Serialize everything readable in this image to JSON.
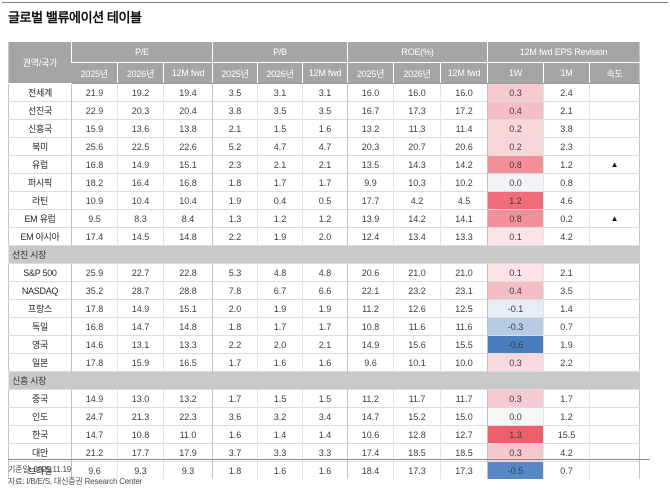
{
  "title": "글로벌 밸류에이션 테이블",
  "colors": {
    "header_bg": "#a5a5a5",
    "section_bg": "#c9c9c9",
    "positive_strong": "#ef5e6b",
    "negative_strong": "#4a7cc0"
  },
  "table": {
    "corner_label": "권역/국가",
    "groups": [
      {
        "label": "P/E",
        "cols": [
          "2025년",
          "2026년",
          "12M fwd"
        ]
      },
      {
        "label": "P/B",
        "cols": [
          "2025년",
          "2026년",
          "12M fwd"
        ]
      },
      {
        "label": "ROE(%)",
        "cols": [
          "2025년",
          "2026년",
          "12M fwd"
        ]
      },
      {
        "label": "12M fwd EPS Revision",
        "cols": [
          "1W",
          "1M",
          "속도"
        ]
      }
    ],
    "rows": [
      {
        "type": "data",
        "name": "전세계",
        "pe": [
          "21.9",
          "19.2",
          "19.4"
        ],
        "pb": [
          "3.5",
          "3.1",
          "3.1"
        ],
        "roe": [
          "16.0",
          "16.0",
          "16.0"
        ],
        "eps_1w": "0.3",
        "eps_1m": "2.4",
        "speed": "",
        "heat_1w": "#f6cad0"
      },
      {
        "type": "data",
        "name": "선진국",
        "pe": [
          "22.9",
          "20.3",
          "20.4"
        ],
        "pb": [
          "3.8",
          "3.5",
          "3.5"
        ],
        "roe": [
          "16.7",
          "17.3",
          "17.2"
        ],
        "eps_1w": "0.4",
        "eps_1m": "2.1",
        "speed": "",
        "heat_1w": "#f5bdc4"
      },
      {
        "type": "data",
        "name": "신흥국",
        "pe": [
          "15.9",
          "13.6",
          "13.8"
        ],
        "pb": [
          "2.1",
          "1.5",
          "1.6"
        ],
        "roe": [
          "13.2",
          "11.3",
          "11.4"
        ],
        "eps_1w": "0.2",
        "eps_1m": "3.8",
        "speed": "",
        "heat_1w": "#f8d6da"
      },
      {
        "type": "data",
        "name": "북미",
        "pe": [
          "25.6",
          "22.5",
          "22.6"
        ],
        "pb": [
          "5.2",
          "4.7",
          "4.7"
        ],
        "roe": [
          "20.3",
          "20.7",
          "20.6"
        ],
        "eps_1w": "0.2",
        "eps_1m": "2.3",
        "speed": "",
        "heat_1w": "#f8d6da"
      },
      {
        "type": "data",
        "name": "유럽",
        "pe": [
          "16.8",
          "14.9",
          "15.1"
        ],
        "pb": [
          "2.3",
          "2.1",
          "2.1"
        ],
        "roe": [
          "13.5",
          "14.3",
          "14.2"
        ],
        "eps_1w": "0.8",
        "eps_1m": "1.2",
        "speed": "▲",
        "heat_1w": "#f28f99"
      },
      {
        "type": "data",
        "name": "퍼시픽",
        "pe": [
          "18.2",
          "16.4",
          "16.8"
        ],
        "pb": [
          "1.8",
          "1.7",
          "1.7"
        ],
        "roe": [
          "9.9",
          "10.3",
          "10.2"
        ],
        "eps_1w": "0.0",
        "eps_1m": "0.8",
        "speed": "",
        "heat_1w": "#f3f2f7"
      },
      {
        "type": "data",
        "name": "라틴",
        "pe": [
          "10.9",
          "10.4",
          "10.4"
        ],
        "pb": [
          "1.9",
          "0.4",
          "0.5"
        ],
        "roe": [
          "17.7",
          "4.2",
          "4.5"
        ],
        "eps_1w": "1.2",
        "eps_1m": "4.6",
        "speed": "",
        "heat_1w": "#f06d79"
      },
      {
        "type": "data",
        "name": "EM 유럽",
        "pe": [
          "9.5",
          "8.3",
          "8.4"
        ],
        "pb": [
          "1.3",
          "1.2",
          "1.2"
        ],
        "roe": [
          "13.9",
          "14.2",
          "14.1"
        ],
        "eps_1w": "0.8",
        "eps_1m": "0.2",
        "speed": "▲",
        "heat_1w": "#f28f99"
      },
      {
        "type": "data",
        "name": "EM 아시아",
        "pe": [
          "17.4",
          "14.5",
          "14.8"
        ],
        "pb": [
          "2.2",
          "1.9",
          "2.0"
        ],
        "roe": [
          "12.4",
          "13.4",
          "13.3"
        ],
        "eps_1w": "0.1",
        "eps_1m": "4.2",
        "speed": "",
        "heat_1w": "#fbe3e6"
      },
      {
        "type": "section",
        "label": "선진 시장"
      },
      {
        "type": "data",
        "name": "S&P 500",
        "pe": [
          "25.9",
          "22.7",
          "22.8"
        ],
        "pb": [
          "5.3",
          "4.8",
          "4.8"
        ],
        "roe": [
          "20.6",
          "21.0",
          "21.0"
        ],
        "eps_1w": "0.1",
        "eps_1m": "2.1",
        "speed": "",
        "heat_1w": "#fbe3e6"
      },
      {
        "type": "data",
        "name": "NASDAQ",
        "pe": [
          "35.2",
          "28.7",
          "28.8"
        ],
        "pb": [
          "7.8",
          "6.7",
          "6.6"
        ],
        "roe": [
          "22.1",
          "23.2",
          "23.1"
        ],
        "eps_1w": "0.4",
        "eps_1m": "3.5",
        "speed": "",
        "heat_1w": "#f5bdc4"
      },
      {
        "type": "data",
        "name": "프랑스",
        "pe": [
          "17.8",
          "14.9",
          "15.1"
        ],
        "pb": [
          "2.0",
          "1.9",
          "1.9"
        ],
        "roe": [
          "11.2",
          "12.6",
          "12.5"
        ],
        "eps_1w": "-0.1",
        "eps_1m": "1.4",
        "speed": "",
        "heat_1w": "#e7edf6"
      },
      {
        "type": "data",
        "name": "독일",
        "pe": [
          "16.8",
          "14.7",
          "14.8"
        ],
        "pb": [
          "1.8",
          "1.7",
          "1.7"
        ],
        "roe": [
          "10.8",
          "11.6",
          "11.6"
        ],
        "eps_1w": "-0.3",
        "eps_1m": "0.7",
        "speed": "",
        "heat_1w": "#b6cbe4"
      },
      {
        "type": "data",
        "name": "영국",
        "pe": [
          "14.6",
          "13.1",
          "13.3"
        ],
        "pb": [
          "2.2",
          "2.0",
          "2.1"
        ],
        "roe": [
          "14.9",
          "15.6",
          "15.5"
        ],
        "eps_1w": "-0.6",
        "eps_1m": "1.9",
        "speed": "",
        "heat_1w": "#4a7cc0"
      },
      {
        "type": "data",
        "name": "일본",
        "pe": [
          "17.8",
          "15.9",
          "16.5"
        ],
        "pb": [
          "1.7",
          "1.6",
          "1.6"
        ],
        "roe": [
          "9.6",
          "10.1",
          "10.0"
        ],
        "eps_1w": "0.3",
        "eps_1m": "2.2",
        "speed": "",
        "heat_1w": "#f9d9de"
      },
      {
        "type": "section",
        "label": "신흥 시장"
      },
      {
        "type": "data",
        "name": "중국",
        "pe": [
          "14.9",
          "13.0",
          "13.2"
        ],
        "pb": [
          "1.7",
          "1.5",
          "1.5"
        ],
        "roe": [
          "11.2",
          "11.7",
          "11.7"
        ],
        "eps_1w": "0.3",
        "eps_1m": "1.7",
        "speed": "",
        "heat_1w": "#f6cad0"
      },
      {
        "type": "data",
        "name": "인도",
        "pe": [
          "24.7",
          "21.3",
          "22.3"
        ],
        "pb": [
          "3.6",
          "3.2",
          "3.4"
        ],
        "roe": [
          "14.7",
          "15.2",
          "15.0"
        ],
        "eps_1w": "0.0",
        "eps_1m": "1.2",
        "speed": "",
        "heat_1w": "#f7f5f7"
      },
      {
        "type": "data",
        "name": "한국",
        "pe": [
          "14.7",
          "10.8",
          "11.0"
        ],
        "pb": [
          "1.6",
          "1.4",
          "1.4"
        ],
        "roe": [
          "10.6",
          "12.8",
          "12.7"
        ],
        "eps_1w": "1.3",
        "eps_1m": "15.5",
        "speed": "",
        "heat_1w": "#ef5e6b"
      },
      {
        "type": "data",
        "name": "대만",
        "pe": [
          "21.2",
          "17.7",
          "17.9"
        ],
        "pb": [
          "3.7",
          "3.3",
          "3.3"
        ],
        "roe": [
          "17.4",
          "18.5",
          "18.5"
        ],
        "eps_1w": "0.3",
        "eps_1m": "4.2",
        "speed": "",
        "heat_1w": "#f5c8cf"
      },
      {
        "type": "data",
        "name": "브라질",
        "pe": [
          "9.6",
          "9.3",
          "9.3"
        ],
        "pb": [
          "1.8",
          "1.6",
          "1.6"
        ],
        "roe": [
          "18.4",
          "17.3",
          "17.3"
        ],
        "eps_1w": "-0.5",
        "eps_1m": "0.7",
        "speed": "",
        "heat_1w": "#5787c7"
      }
    ]
  },
  "footer": {
    "base_date": "기준일: 2025.11.19",
    "source": "자료: I/B/E/S, 대신증권 Research Center"
  }
}
